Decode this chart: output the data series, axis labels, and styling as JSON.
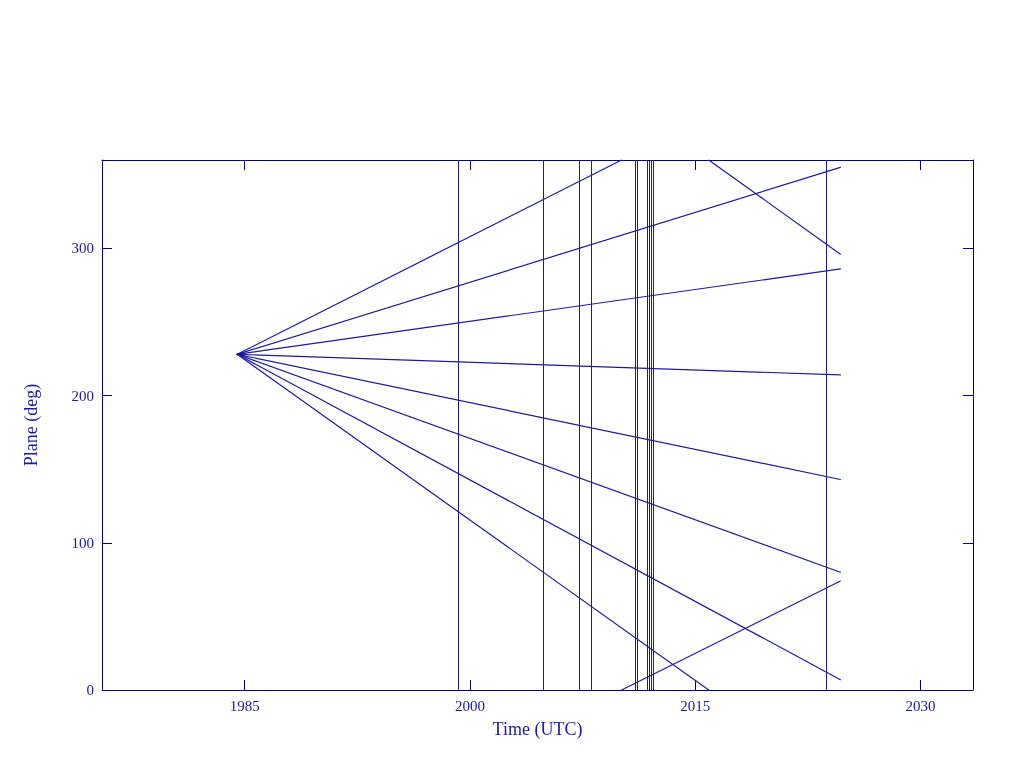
{
  "chart_data": {
    "type": "line",
    "xlabel": "Time (UTC)",
    "ylabel": "Plane (deg)",
    "xlim": [
      1975.5,
      2033.5
    ],
    "ylim": [
      0,
      360
    ],
    "xticks": [
      1985,
      2000,
      2015,
      2030
    ],
    "yticks": [
      0,
      100,
      200,
      300
    ],
    "marker": "none",
    "line_style": "solid",
    "series": [
      {
        "color": "#1a1aa0",
        "x": [
          1984.5,
          2010.1
        ],
        "values": [
          228,
          360
        ]
      },
      {
        "color": "#1a1aa0",
        "x": [
          2010.1,
          2024.67
        ],
        "values": [
          0,
          74
        ]
      },
      {
        "color": "#1a1aa0",
        "x": [
          1984.5,
          2024.67
        ],
        "values": [
          228,
          355
        ]
      },
      {
        "color": "#1a1aa0",
        "x": [
          1984.5,
          2024.67
        ],
        "values": [
          228,
          286
        ]
      },
      {
        "color": "#1a1aa0",
        "x": [
          1984.5,
          2024.67
        ],
        "values": [
          228,
          214
        ]
      },
      {
        "color": "#1a1aa0",
        "x": [
          1984.5,
          2024.67
        ],
        "values": [
          228,
          143
        ]
      },
      {
        "color": "#1a1aa0",
        "x": [
          1984.5,
          2024.67
        ],
        "values": [
          228,
          80
        ]
      },
      {
        "color": "#1a1aa0",
        "x": [
          1984.5,
          2024.67
        ],
        "values": [
          228,
          7
        ]
      },
      {
        "color": "#1a1aa0",
        "x": [
          1984.5,
          2015.9
        ],
        "values": [
          228,
          0
        ]
      },
      {
        "color": "#1a1aa0",
        "x": [
          2015.9,
          2024.67
        ],
        "values": [
          360,
          296
        ]
      }
    ],
    "ref_lines": [
      {
        "axis": "x",
        "value": 1999.2,
        "color": "#1a1aa0"
      },
      {
        "axis": "x",
        "value": 2004.9,
        "color": "#1a1aa0"
      },
      {
        "axis": "x",
        "value": 2007.3,
        "color": "#1a1aa0"
      },
      {
        "axis": "x",
        "value": 2008.1,
        "color": "#1a1aa0"
      },
      {
        "axis": "x",
        "value": 2011.0,
        "color": "#1a1aa0"
      },
      {
        "axis": "x",
        "value": 2011.15,
        "color": "#1a1aa0"
      },
      {
        "axis": "x",
        "value": 2011.8,
        "color": "#1a1aa0"
      },
      {
        "axis": "x",
        "value": 2011.95,
        "color": "#1a1aa0"
      },
      {
        "axis": "x",
        "value": 2012.07,
        "color": "#1a1aa0"
      },
      {
        "axis": "x",
        "value": 2012.2,
        "color": "#1a1aa0"
      },
      {
        "axis": "x",
        "value": 2023.75,
        "color": "#1a1aa0"
      }
    ]
  }
}
